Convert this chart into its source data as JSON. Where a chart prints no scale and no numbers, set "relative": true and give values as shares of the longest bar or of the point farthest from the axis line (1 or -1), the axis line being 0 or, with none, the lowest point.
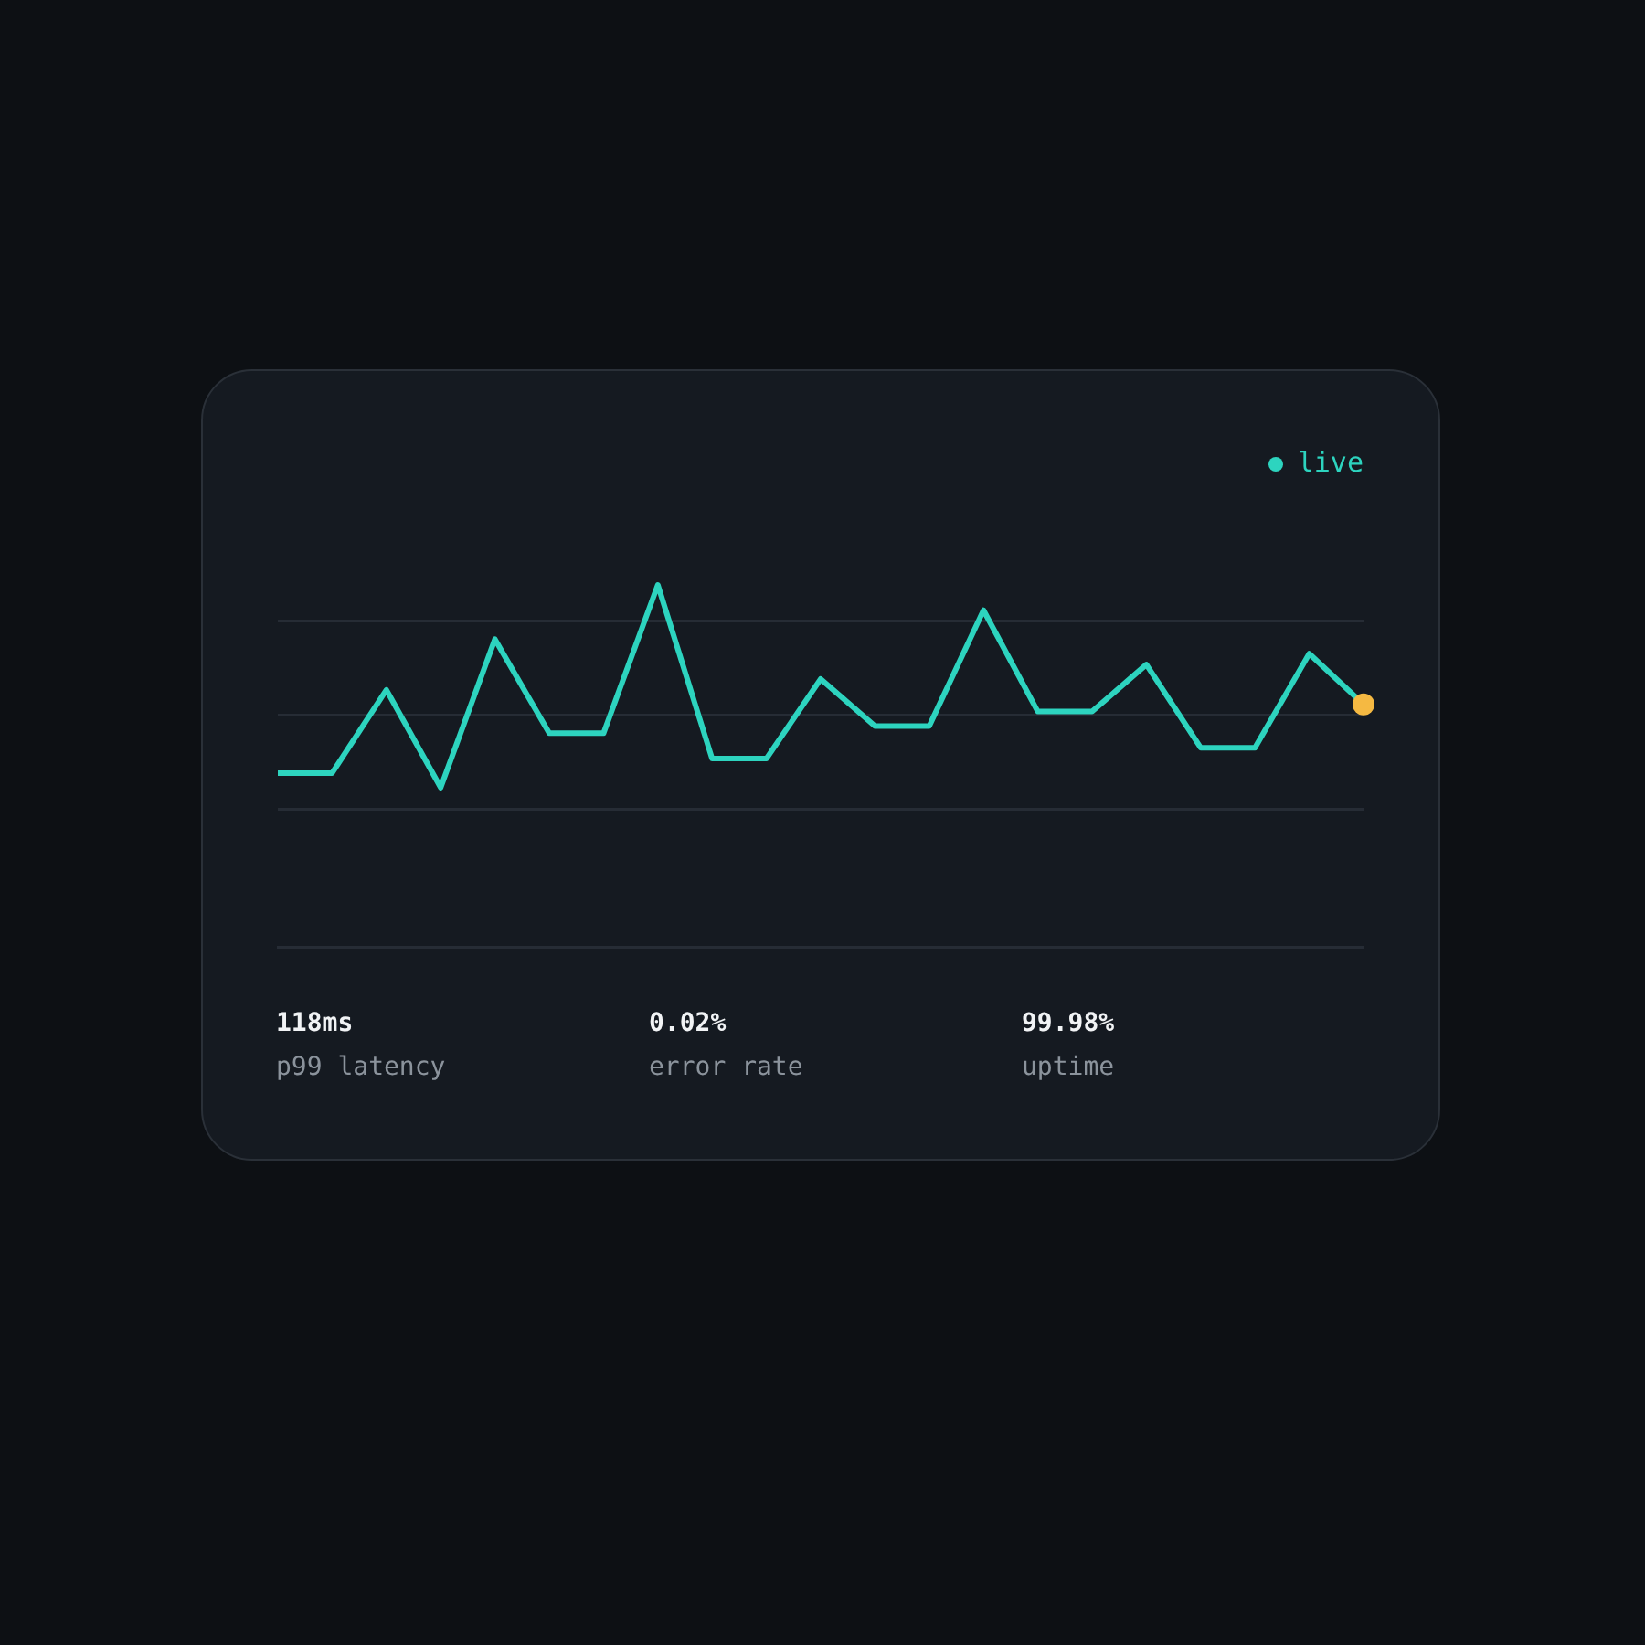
{
  "chart_data": {
    "type": "line",
    "relative": true,
    "categories": [
      null,
      null,
      null,
      null,
      null,
      null,
      null,
      null,
      null,
      null,
      null,
      null,
      null,
      null,
      null,
      null,
      null,
      null,
      null,
      null,
      null
    ],
    "series": [
      {
        "color": "#2dd4bf",
        "values": [
          0.48,
          0.48,
          0.71,
          0.44,
          0.85,
          0.59,
          0.59,
          1,
          0.52,
          0.52,
          0.74,
          0.61,
          0.61,
          0.93,
          0.65,
          0.65,
          0.78,
          0.55,
          0.55,
          0.81,
          0.67
        ],
        "colors": [
          null,
          null,
          null,
          null,
          null,
          null,
          null,
          null,
          null,
          null,
          null,
          null,
          null,
          null,
          null,
          null,
          null,
          null,
          null,
          null,
          "#f5b942"
        ]
      }
    ],
    "marker": "none",
    "legend": false,
    "ref_lines": [
      {
        "axis": "y",
        "value": 0.9,
        "color": "#262c35"
      },
      {
        "axis": "y",
        "value": 0.64,
        "color": "#262c35"
      },
      {
        "axis": "y",
        "value": 0.38,
        "color": "#262c35"
      }
    ],
    "annotations": [
      "live",
      "118ms",
      "p99 latency",
      "0.02%",
      "error rate",
      "99.98%",
      "uptime"
    ]
  }
}
